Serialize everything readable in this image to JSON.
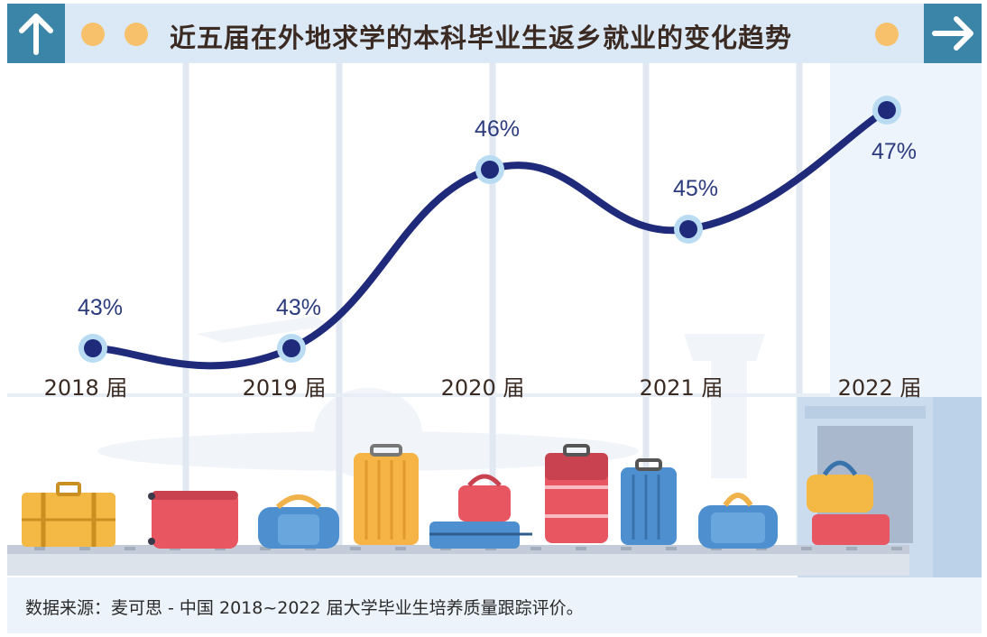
{
  "header": {
    "title": "近五届在外地求学的本科毕业生返乡就业的变化趋势"
  },
  "footer": {
    "source": "数据来源：麦可思 - 中国 2018~2022 届大学毕业生培养质量跟踪评价。"
  },
  "colors": {
    "header_bg": "#dbe9f7",
    "arrow_box": "#3b86a8",
    "accent_dot": "#f7c06b",
    "line": "#1f2a7a",
    "marker_halo": "#b9dcf3",
    "value_label": "#2b3b7e",
    "category_label": "#3a2a22"
  },
  "icons": {
    "left": "arrow-up-icon",
    "right": "arrow-right-icon"
  },
  "chart_data": {
    "type": "line",
    "categories": [
      "2018 届",
      "2019 届",
      "2020 届",
      "2021 届",
      "2022 届"
    ],
    "values": [
      43,
      43,
      46,
      45,
      47
    ],
    "value_labels": [
      "43%",
      "43%",
      "46%",
      "45%",
      "47%"
    ],
    "unit": "%",
    "grid": "vertical only",
    "legend": "none"
  }
}
